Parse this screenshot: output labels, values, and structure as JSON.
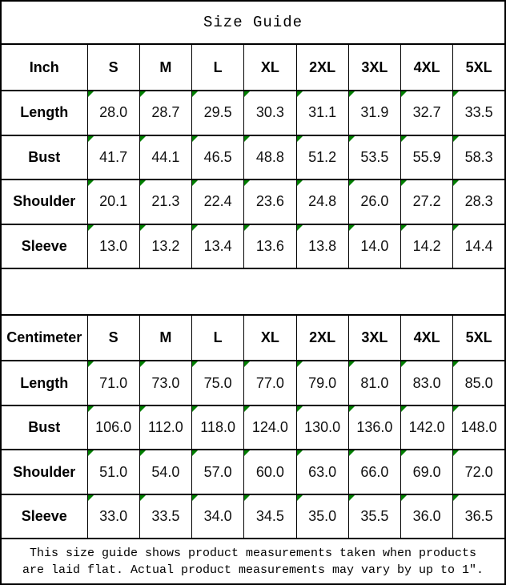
{
  "title": "Size Guide",
  "footer": {
    "line1": "This size guide shows product measurements taken when products",
    "line2": "are laid flat. Actual product measurements may vary by up to 1″."
  },
  "colors": {
    "flag_green": "#008000",
    "border": "#000000",
    "background": "#ffffff",
    "text": "#000000"
  },
  "chart_data": [
    {
      "type": "table",
      "title": "Size Guide",
      "unit": "Inch",
      "columns": [
        "Inch",
        "S",
        "M",
        "L",
        "XL",
        "2XL",
        "3XL",
        "4XL",
        "5XL"
      ],
      "rows": [
        [
          "Length",
          "28.0",
          "28.7",
          "29.5",
          "30.3",
          "31.1",
          "31.9",
          "32.7",
          "33.5"
        ],
        [
          "Bust",
          "41.7",
          "44.1",
          "46.5",
          "48.8",
          "51.2",
          "53.5",
          "55.9",
          "58.3"
        ],
        [
          "Shoulder",
          "20.1",
          "21.3",
          "22.4",
          "23.6",
          "24.8",
          "26.0",
          "27.2",
          "28.3"
        ],
        [
          "Sleeve",
          "13.0",
          "13.2",
          "13.4",
          "13.6",
          "13.8",
          "14.0",
          "14.2",
          "14.4"
        ]
      ]
    },
    {
      "type": "table",
      "title": "Size Guide",
      "unit": "Centimeter",
      "columns": [
        "Centimeter",
        "S",
        "M",
        "L",
        "XL",
        "2XL",
        "3XL",
        "4XL",
        "5XL"
      ],
      "rows": [
        [
          "Length",
          "71.0",
          "73.0",
          "75.0",
          "77.0",
          "79.0",
          "81.0",
          "83.0",
          "85.0"
        ],
        [
          "Bust",
          "106.0",
          "112.0",
          "118.0",
          "124.0",
          "130.0",
          "136.0",
          "142.0",
          "148.0"
        ],
        [
          "Shoulder",
          "51.0",
          "54.0",
          "57.0",
          "60.0",
          "63.0",
          "66.0",
          "69.0",
          "72.0"
        ],
        [
          "Sleeve",
          "33.0",
          "33.5",
          "34.0",
          "34.5",
          "35.0",
          "35.5",
          "36.0",
          "36.5"
        ]
      ]
    }
  ]
}
